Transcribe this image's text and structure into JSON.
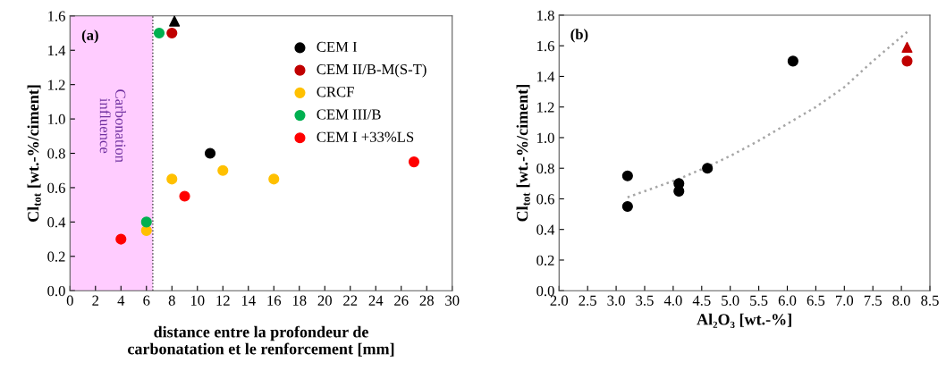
{
  "chart_data": [
    {
      "type": "scatter",
      "title": "(a)",
      "xlabel": "distance entre la profondeur de\ncarbonatation et le renforcement [mm]",
      "ylabel": "Cl$_{tot}$ [wt.-%/ciment]",
      "xlim": [
        0,
        30
      ],
      "xticks": [
        0,
        2,
        4,
        6,
        8,
        10,
        12,
        14,
        16,
        18,
        20,
        22,
        24,
        26,
        28,
        30
      ],
      "ylim": [
        0,
        1.6
      ],
      "yticks": [
        {
          "value": 0,
          "label": "0.0"
        },
        {
          "value": 0.2,
          "label": "0.2"
        },
        {
          "value": 0.4,
          "label": "0.4"
        },
        {
          "value": 0.6,
          "label": "0.6"
        },
        {
          "value": 0.8,
          "label": "0.8"
        },
        {
          "value": 1.0,
          "label": "1.0"
        },
        {
          "value": 1.2,
          "label": "1.2"
        },
        {
          "value": 1.4,
          "label": "1.4"
        },
        {
          "value": 1.6,
          "label": "1.6"
        }
      ],
      "grid": false,
      "legend": "top right",
      "marker": "circle",
      "bands": [
        {
          "axis": "x",
          "from": 0,
          "to": 6.5,
          "label": "Carbonation\ninfluence",
          "color": "#ffccff"
        }
      ],
      "ref_lines": [
        {
          "axis": "x",
          "value": 6.5,
          "color": "#404040",
          "line_style": "dotted"
        }
      ],
      "series": [
        {
          "name": "CEM I",
          "color": "#000000",
          "x": [
            11
          ],
          "values": [
            0.8
          ]
        },
        {
          "name": "CEM II/B-M(S-T)",
          "color": "#c00000",
          "x": [
            8
          ],
          "values": [
            1.5
          ]
        },
        {
          "name": "CRCF",
          "color": "#ffc000",
          "x": [
            6,
            8,
            12,
            16
          ],
          "values": [
            0.35,
            0.65,
            0.7,
            0.65
          ]
        },
        {
          "name": "CEM III/B",
          "color": "#00b050",
          "x": [
            6,
            7
          ],
          "values": [
            0.4,
            1.5
          ]
        },
        {
          "name": "CEM I +33%LS",
          "color": "#ff0000",
          "x": [
            4,
            9,
            27
          ],
          "values": [
            0.3,
            0.55,
            0.75
          ]
        },
        {
          "color": "#000000",
          "marker": "triangle",
          "x": [
            8.2
          ],
          "values": [
            1.57
          ]
        }
      ]
    },
    {
      "type": "scatter",
      "title": "(b)",
      "xlabel": "Al₂O₃ [wt.-%]",
      "ylabel": "Cl$_{tot}$ [wt.-%/ciment]",
      "xlim": [
        2.0,
        8.5
      ],
      "xticks": [
        {
          "value": 2,
          "label": "2.0"
        },
        2.5,
        {
          "value": 3,
          "label": "3.0"
        },
        3.5,
        {
          "value": 4,
          "label": "4.0"
        },
        4.5,
        {
          "value": 5,
          "label": "5.0"
        },
        5.5,
        {
          "value": 6,
          "label": "6.0"
        },
        6.5,
        {
          "value": 7,
          "label": "7.0"
        },
        7.5,
        {
          "value": 8,
          "label": "8.0"
        },
        8.5
      ],
      "ylim": [
        0,
        1.8
      ],
      "yticks": [
        {
          "value": 0,
          "label": "0.0"
        },
        {
          "value": 0.2,
          "label": "0.2"
        },
        {
          "value": 0.4,
          "label": "0.4"
        },
        {
          "value": 0.6,
          "label": "0.6"
        },
        {
          "value": 0.8,
          "label": "0.8"
        },
        {
          "value": 1.0,
          "label": "1.0"
        },
        {
          "value": 1.2,
          "label": "1.2"
        },
        {
          "value": 1.4,
          "label": "1.4"
        },
        {
          "value": 1.6,
          "label": "1.6"
        },
        {
          "value": 1.8,
          "label": "1.8"
        }
      ],
      "grid": false,
      "marker": "circle",
      "series": [
        {
          "type": "line",
          "color": "#a6a6a6",
          "line_style": "dotted",
          "marker": "none",
          "x": [
            3.2,
            4.1,
            4.6,
            5.0,
            5.5,
            6.0,
            6.5,
            7.0,
            7.5,
            8.1
          ],
          "values": [
            0.61,
            0.73,
            0.81,
            0.88,
            0.98,
            1.09,
            1.2,
            1.33,
            1.5,
            1.69
          ]
        },
        {
          "color": "#000000",
          "x": [
            3.2,
            3.2,
            4.1,
            4.1,
            4.6,
            6.1
          ],
          "values": [
            0.75,
            0.55,
            0.7,
            0.65,
            0.8,
            1.5
          ]
        },
        {
          "color": "#c00000",
          "x": [
            8.1
          ],
          "values": [
            1.5
          ]
        },
        {
          "color": "#c00000",
          "marker": "triangle",
          "x": [
            8.1
          ],
          "values": [
            1.59
          ]
        }
      ]
    }
  ]
}
